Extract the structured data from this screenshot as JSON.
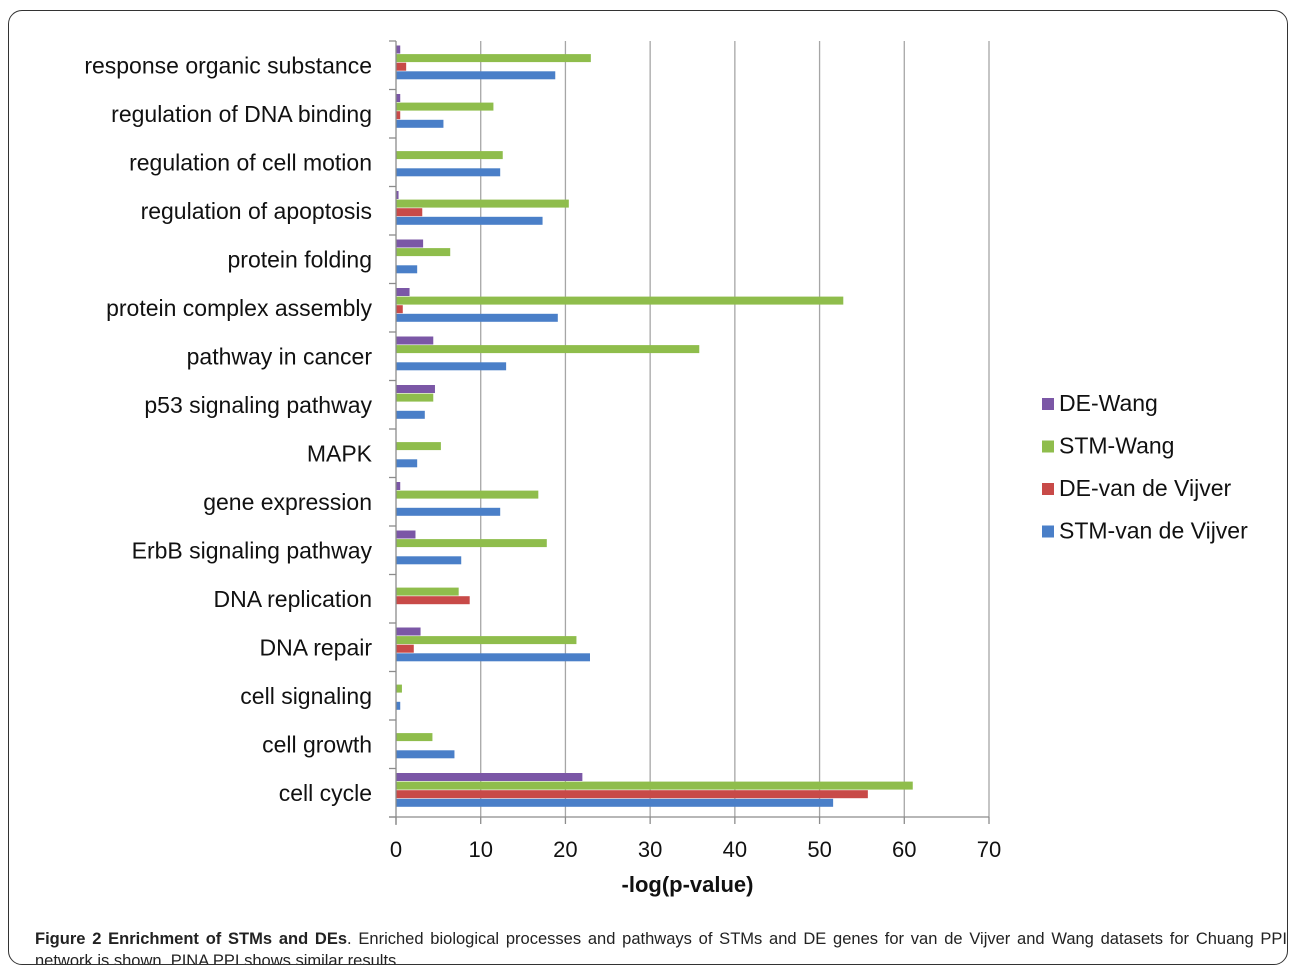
{
  "figure": {
    "caption_bold": "Figure 2 Enrichment of STMs and DEs",
    "caption_text": ". Enriched biological processes and pathways of STMs and DE genes for van de Vijver and Wang datasets for Chuang PPI network is shown. PINA PPI shows similar results."
  },
  "chart_data": {
    "type": "bar",
    "orientation": "horizontal",
    "title": "",
    "xlabel": "-log(p-value)",
    "ylabel": "",
    "xlim": [
      0,
      70
    ],
    "xticks": [
      0,
      10,
      20,
      30,
      40,
      50,
      60,
      70
    ],
    "grid": "vertical",
    "legend_position": "right",
    "categories": [
      "response organic substance",
      "regulation of DNA binding",
      "regulation of cell motion",
      "regulation of apoptosis",
      "protein folding",
      "protein complex assembly",
      "pathway in cancer",
      "p53 signaling pathway",
      "MAPK",
      "gene expression",
      "ErbB signaling pathway",
      "DNA replication",
      "DNA repair",
      "cell signaling",
      "cell growth",
      "cell cycle"
    ],
    "series": [
      {
        "name": "DE-Wang",
        "color": "#7b57a6",
        "values": [
          0.5,
          0.5,
          0,
          0.3,
          3.2,
          1.6,
          4.4,
          4.6,
          0,
          0.5,
          2.3,
          0,
          2.9,
          0,
          0,
          22
        ]
      },
      {
        "name": "STM-Wang",
        "color": "#8fbd4c",
        "values": [
          23,
          11.5,
          12.6,
          20.4,
          6.4,
          52.8,
          35.8,
          4.4,
          5.3,
          16.8,
          17.8,
          7.4,
          21.3,
          0.7,
          4.3,
          61
        ]
      },
      {
        "name": "DE-van de Vijver",
        "color": "#c84a48",
        "values": [
          1.2,
          0.5,
          0,
          3.1,
          0,
          0.8,
          0,
          0,
          0,
          0,
          0,
          8.7,
          2.1,
          0,
          0,
          55.7
        ]
      },
      {
        "name": "STM-van de Vijver",
        "color": "#4a7fc8",
        "values": [
          18.8,
          5.6,
          12.3,
          17.3,
          2.5,
          19.1,
          13,
          3.4,
          2.5,
          12.3,
          7.7,
          0,
          22.9,
          0.5,
          6.9,
          51.6
        ]
      }
    ]
  }
}
